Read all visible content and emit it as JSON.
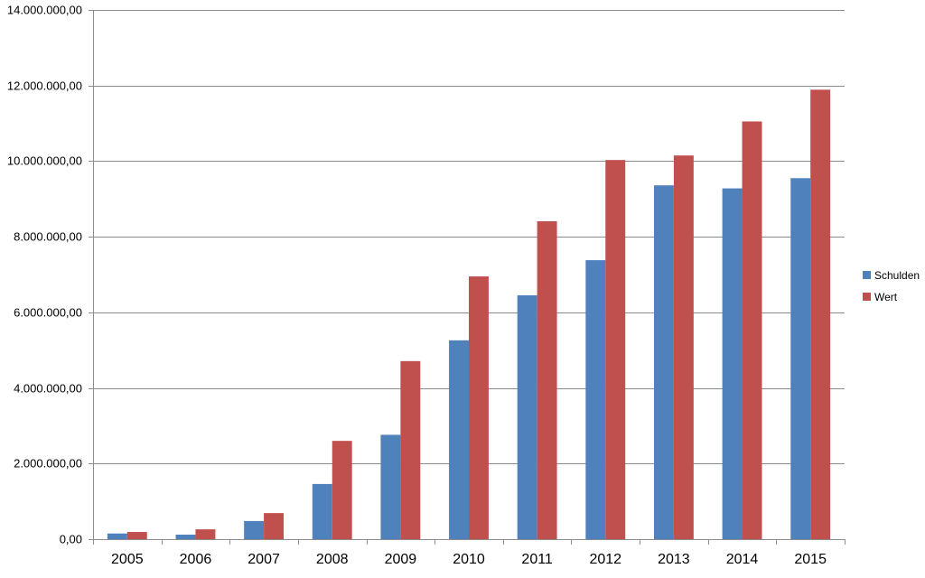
{
  "chart_data": {
    "type": "bar",
    "categories": [
      "2005",
      "2006",
      "2007",
      "2008",
      "2009",
      "2010",
      "2011",
      "2012",
      "2013",
      "2014",
      "2015"
    ],
    "series": [
      {
        "name": "Schulden",
        "color": "#4f81bd",
        "values": [
          150000,
          120000,
          480000,
          1460000,
          2760000,
          5260000,
          6450000,
          7380000,
          9360000,
          9280000,
          9550000
        ]
      },
      {
        "name": "Wert",
        "color": "#c0504d",
        "values": [
          190000,
          260000,
          690000,
          2600000,
          4710000,
          6950000,
          8410000,
          10030000,
          10150000,
          11050000,
          11890000
        ]
      }
    ],
    "y_ticks": [
      "0,00",
      "2.000.000,00",
      "4.000.000,00",
      "6.000.000,00",
      "8.000.000,00",
      "10.000.000,00",
      "12.000.000,00",
      "14.000.000,00"
    ],
    "ylim": [
      0,
      14000000
    ],
    "grid": true,
    "legend_position": "right"
  }
}
